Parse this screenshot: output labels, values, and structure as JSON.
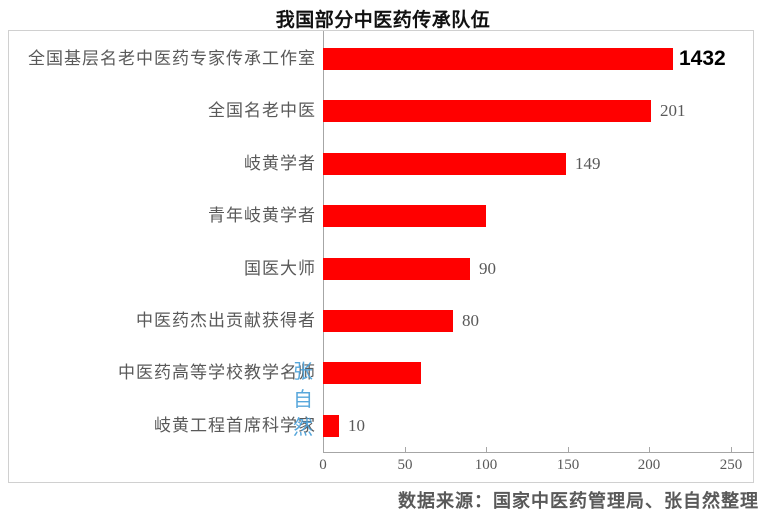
{
  "title": "我国部分中医药传承队伍",
  "source": "数据来源：国家中医药管理局、张自然整理",
  "watermark": "张自然",
  "colors": {
    "bar": "#ff0000",
    "text_gray": "#595959",
    "axis_gray": "#a6a6a6",
    "border_gray": "#d0d0d0",
    "emphasis_black": "#000000",
    "watermark_blue": "#4a9fd8"
  },
  "chart_data": {
    "type": "bar",
    "orientation": "horizontal",
    "title": "我国部分中医药传承队伍",
    "categories": [
      "全国基层名老中医药专家传承工作室",
      "全国名老中医",
      "岐黄学者",
      "青年岐黄学者",
      "国医大师",
      "中医药杰出贡献获得者",
      "中医药高等学校教学名师",
      "岐黄工程首席科学家"
    ],
    "values": [
      1432,
      201,
      149,
      100,
      90,
      80,
      60,
      10
    ],
    "data_labels": [
      "1432",
      "201",
      "149",
      "",
      "90",
      "80",
      "",
      "10"
    ],
    "emphasized_index": 0,
    "xlabel": "",
    "ylabel": "",
    "xlim": [
      0,
      250
    ],
    "xticks": [
      0,
      50,
      100,
      150,
      200,
      250
    ],
    "bar_display_clip_units": 215,
    "legend": "none",
    "grid": false
  }
}
